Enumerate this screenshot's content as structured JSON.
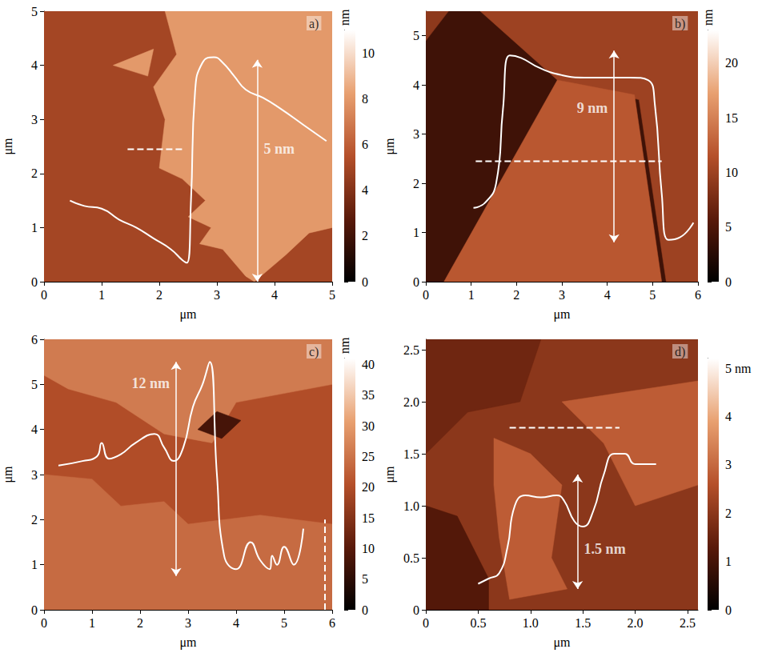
{
  "chart_data": [
    {
      "type": "image",
      "panel": "a)",
      "x_label": "μm",
      "y_label": "μm",
      "xlim": [
        0,
        5
      ],
      "xticks": [
        0,
        1,
        2,
        3,
        4,
        5
      ],
      "ylim": [
        0,
        5
      ],
      "yticks": [
        0,
        1,
        2,
        3,
        4,
        5
      ],
      "background_height": 5,
      "regions": [
        {
          "height": 8,
          "polygon": [
            [
              2.1,
              5
            ],
            [
              5,
              5
            ],
            [
              5,
              1.0
            ],
            [
              4.6,
              0.9
            ],
            [
              4.2,
              0.5
            ],
            [
              3.65,
              0
            ],
            [
              3.5,
              0.1
            ],
            [
              3.1,
              0.6
            ],
            [
              2.7,
              0.7
            ],
            [
              2.9,
              1.0
            ],
            [
              2.5,
              1.2
            ],
            [
              2.8,
              1.5
            ],
            [
              2.4,
              1.9
            ],
            [
              2.0,
              2.1
            ],
            [
              2.1,
              3.0
            ],
            [
              1.9,
              3.6
            ],
            [
              2.3,
              4.2
            ]
          ]
        },
        {
          "height": 8,
          "polygon": [
            [
              1.2,
              4.0
            ],
            [
              1.9,
              4.3
            ],
            [
              1.8,
              3.8
            ]
          ]
        }
      ],
      "profile": {
        "x": [
          0.45,
          0.7,
          1.0,
          1.3,
          1.6,
          1.9,
          2.2,
          2.4,
          2.48,
          2.55,
          2.62,
          2.75,
          2.95,
          3.1,
          3.3,
          3.5,
          3.8,
          4.1,
          4.5,
          4.9
        ],
        "y": [
          1.5,
          1.4,
          1.35,
          1.15,
          1.0,
          0.8,
          0.6,
          0.4,
          0.35,
          1.5,
          3.5,
          4.05,
          4.15,
          4.05,
          3.8,
          3.55,
          3.4,
          3.2,
          2.9,
          2.6
        ]
      },
      "cut": {
        "x": [
          1.45,
          2.45
        ],
        "y": [
          2.45,
          2.45
        ]
      },
      "arrow": {
        "x": 3.7,
        "y": [
          0,
          4.1
        ],
        "label": "5 nm"
      },
      "colorbar": {
        "ylim": [
          0,
          11
        ],
        "yticks": [
          0,
          2,
          4,
          6,
          8,
          10
        ],
        "label": "nm"
      }
    },
    {
      "type": "image",
      "panel": "b)",
      "x_label": "μm",
      "y_label": "μm",
      "xlim": [
        0,
        6
      ],
      "xticks": [
        0,
        1,
        2,
        3,
        4,
        5,
        6
      ],
      "ylim": [
        0,
        5.5
      ],
      "yticks": [
        0,
        1,
        2,
        3,
        4,
        5
      ],
      "background_height": 4,
      "regions": [
        {
          "height": 10,
          "polygon": [
            [
              1.2,
              5.5
            ],
            [
              6,
              5.5
            ],
            [
              6,
              0
            ],
            [
              5.3,
              0
            ],
            [
              4.7,
              3.7
            ],
            [
              2.9,
              4.1
            ]
          ]
        },
        {
          "height": 9,
          "polygon": [
            [
              0,
              5.5
            ],
            [
              0.5,
              5.5
            ],
            [
              0,
              4.9
            ]
          ]
        },
        {
          "height": 12,
          "polygon": [
            [
              0.4,
              0
            ],
            [
              2.9,
              4.1
            ],
            [
              4.6,
              3.8
            ],
            [
              5.2,
              0
            ]
          ]
        }
      ],
      "profile": {
        "x": [
          1.05,
          1.3,
          1.55,
          1.7,
          1.85,
          2.1,
          2.5,
          3.0,
          3.5,
          4.0,
          4.5,
          4.9,
          5.05,
          5.2,
          5.35,
          5.6,
          5.9
        ],
        "y": [
          1.5,
          1.6,
          2.0,
          3.5,
          4.6,
          4.55,
          4.35,
          4.2,
          4.15,
          4.15,
          4.15,
          4.1,
          3.6,
          1.8,
          0.85,
          0.9,
          1.2
        ]
      },
      "cut": {
        "x": [
          1.1,
          5.2
        ],
        "y": [
          2.45,
          2.45
        ]
      },
      "arrow": {
        "x": 4.15,
        "y": [
          0.8,
          4.7
        ],
        "label": "9 nm"
      },
      "colorbar": {
        "ylim": [
          0,
          23
        ],
        "yticks": [
          0,
          5,
          10,
          15,
          20
        ],
        "label": "nm"
      }
    },
    {
      "type": "image",
      "panel": "c)",
      "x_label": "μm",
      "y_label": "μm",
      "xlim": [
        0,
        6
      ],
      "xticks": [
        0,
        1,
        2,
        3,
        4,
        5,
        6
      ],
      "ylim": [
        0,
        6
      ],
      "yticks": [
        0,
        1,
        2,
        3,
        4,
        5,
        6
      ],
      "background_height": 20,
      "regions": [
        {
          "height": 24,
          "polygon": [
            [
              0,
              0
            ],
            [
              6,
              0
            ],
            [
              6,
              1.9
            ],
            [
              4.5,
              2.1
            ],
            [
              3.0,
              1.9
            ],
            [
              2.5,
              2.4
            ],
            [
              1.6,
              2.3
            ],
            [
              1.0,
              2.9
            ],
            [
              0,
              3.0
            ]
          ]
        },
        {
          "height": 26,
          "polygon": [
            [
              0,
              5.2
            ],
            [
              0,
              6
            ],
            [
              6,
              6
            ],
            [
              6,
              5.0
            ],
            [
              4,
              4.6
            ],
            [
              3.5,
              3.7
            ],
            [
              2.5,
              3.9
            ],
            [
              1.5,
              4.6
            ],
            [
              0.5,
              4.9
            ]
          ]
        },
        {
          "height": 8,
          "polygon": [
            [
              3.2,
              4.0
            ],
            [
              3.6,
              4.4
            ],
            [
              4.1,
              4.2
            ],
            [
              3.7,
              3.8
            ]
          ]
        }
      ],
      "profile": {
        "x": [
          0.3,
          0.8,
          1.1,
          1.2,
          1.35,
          1.6,
          1.9,
          2.3,
          2.5,
          2.7,
          2.9,
          3.1,
          3.3,
          3.45,
          3.6,
          3.75,
          4.0,
          4.3,
          4.5,
          4.7,
          4.75,
          4.85,
          5.0,
          5.2,
          5.4
        ],
        "y": [
          3.2,
          3.3,
          3.4,
          3.7,
          3.35,
          3.45,
          3.7,
          3.9,
          3.6,
          3.3,
          3.6,
          4.5,
          5.0,
          5.5,
          3.0,
          1.2,
          0.9,
          1.5,
          1.1,
          0.9,
          1.2,
          1.0,
          1.4,
          1.0,
          1.8
        ]
      },
      "cut": {
        "x": [
          5.85,
          5.85
        ],
        "y": [
          0,
          2.0
        ]
      },
      "arrow": {
        "x": 2.75,
        "y": [
          0.75,
          5.5
        ],
        "label": "12 nm"
      },
      "colorbar": {
        "ylim": [
          0,
          41
        ],
        "yticks": [
          0,
          5,
          10,
          15,
          20,
          25,
          30,
          35,
          40
        ],
        "label": "nm"
      }
    },
    {
      "type": "image",
      "panel": "d)",
      "x_label": "μm",
      "y_label": "μm",
      "xlim": [
        0,
        2.6
      ],
      "xticks": [
        0,
        0.5,
        {
          "value": 1,
          "label": "1.0"
        },
        1.5,
        {
          "value": 2,
          "label": "2.0"
        },
        2.5
      ],
      "ylim": [
        0,
        2.6
      ],
      "yticks": [
        0,
        0.5,
        {
          "value": 1,
          "label": "1.0"
        },
        1.5,
        {
          "value": 2,
          "label": "2.0"
        },
        2.5
      ],
      "background_height": 2.0,
      "regions": [
        {
          "height": 1.2,
          "polygon": [
            [
              0,
              0
            ],
            [
              0.6,
              0
            ],
            [
              0.6,
              0.3
            ],
            [
              0.3,
              0.9
            ],
            [
              0,
              1.0
            ]
          ]
        },
        {
          "height": 1.6,
          "polygon": [
            [
              0,
              2.6
            ],
            [
              1.1,
              2.6
            ],
            [
              0.9,
              2.0
            ],
            [
              0.4,
              1.9
            ],
            [
              0,
              1.5
            ]
          ]
        },
        {
          "height": 2.8,
          "polygon": [
            [
              0.65,
              1.65
            ],
            [
              1.0,
              1.5
            ],
            [
              1.3,
              1.2
            ],
            [
              1.2,
              0.5
            ],
            [
              1.35,
              0.2
            ],
            [
              0.8,
              0.1
            ],
            [
              0.7,
              0.7
            ],
            [
              0.65,
              1.2
            ]
          ]
        },
        {
          "height": 2.8,
          "polygon": [
            [
              1.3,
              2.0
            ],
            [
              2.6,
              2.2
            ],
            [
              2.6,
              1.2
            ],
            [
              2.0,
              1.0
            ],
            [
              1.7,
              1.6
            ]
          ]
        }
      ],
      "profile": {
        "x": [
          0.5,
          0.6,
          0.7,
          0.78,
          0.85,
          0.95,
          1.1,
          1.25,
          1.32,
          1.42,
          1.5,
          1.6,
          1.7,
          1.8,
          1.9,
          2.0,
          2.2
        ],
        "y": [
          0.25,
          0.3,
          0.35,
          0.6,
          1.0,
          1.1,
          1.08,
          1.1,
          1.05,
          0.85,
          0.8,
          0.95,
          1.3,
          1.5,
          1.5,
          1.4,
          1.4
        ]
      },
      "cut": {
        "x": [
          0.8,
          1.85
        ],
        "y": [
          1.75,
          1.75
        ]
      },
      "arrow": {
        "x": 1.45,
        "y": [
          0.2,
          1.3
        ],
        "label": "1.5 nm"
      },
      "colorbar": {
        "ylim": [
          0,
          5.2
        ],
        "yticks": [
          0,
          1,
          2,
          3,
          4,
          {
            "value": 5,
            "label": "5 nm"
          }
        ]
      }
    }
  ]
}
